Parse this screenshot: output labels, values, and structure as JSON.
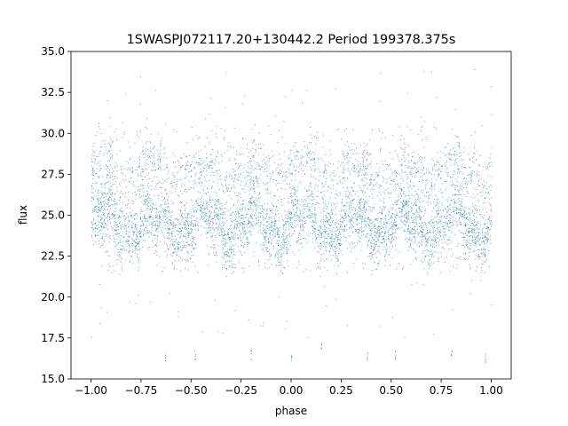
{
  "chart_data": {
    "type": "scatter",
    "title": "1SWASPJ072117.20+130442.2 Period 199378.375s",
    "xlabel": "phase",
    "ylabel": "flux",
    "xlim": [
      -1.1,
      1.1
    ],
    "ylim": [
      15.0,
      35.0
    ],
    "x_ticks": [
      -1.0,
      -0.75,
      -0.5,
      -0.25,
      0.0,
      0.25,
      0.5,
      0.75,
      1.0
    ],
    "x_tick_labels": [
      "−1.00",
      "−0.75",
      "−0.50",
      "−0.25",
      "0.00",
      "0.25",
      "0.50",
      "0.75",
      "1.00"
    ],
    "y_ticks": [
      15.0,
      17.5,
      20.0,
      22.5,
      25.0,
      27.5,
      30.0,
      32.5,
      35.0
    ],
    "y_tick_labels": [
      "15.0",
      "17.5",
      "20.0",
      "22.5",
      "25.0",
      "27.5",
      "30.0",
      "32.5",
      "35.0"
    ],
    "grid": false,
    "marker_color": "#1f77b4",
    "series": [
      {
        "description": "phase-folded flux, repeated over two cycles (phase -1 to 1)",
        "dense_bands": [
          {
            "flux_low": 22.5,
            "flux_high": 26.5
          },
          {
            "flux_low": 26.5,
            "flux_high": 29.0
          }
        ],
        "sample_points": [
          [
            -0.98,
            24.2
          ],
          [
            -0.95,
            25.8
          ],
          [
            -0.92,
            28.0
          ],
          [
            -0.88,
            24.6
          ],
          [
            -0.83,
            26.4
          ],
          [
            -0.78,
            25.1
          ],
          [
            -0.72,
            24.0
          ],
          [
            -0.66,
            22.5
          ],
          [
            -0.6,
            27.0
          ],
          [
            -0.55,
            28.5
          ],
          [
            -0.5,
            25.0
          ],
          [
            -0.45,
            27.7
          ],
          [
            -0.4,
            25.2
          ],
          [
            -0.35,
            24.3
          ],
          [
            -0.3,
            26.7
          ],
          [
            -0.25,
            24.8
          ],
          [
            -0.2,
            23.8
          ],
          [
            -0.15,
            28.0
          ],
          [
            -0.1,
            24.5
          ],
          [
            -0.05,
            26.0
          ],
          [
            0.0,
            24.3
          ],
          [
            0.05,
            28.2
          ],
          [
            0.1,
            25.0
          ],
          [
            0.15,
            23.9
          ],
          [
            0.2,
            26.4
          ],
          [
            0.25,
            25.3
          ],
          [
            0.3,
            23.0
          ],
          [
            0.35,
            24.6
          ],
          [
            0.4,
            27.2
          ],
          [
            0.45,
            28.3
          ],
          [
            0.5,
            25.0
          ],
          [
            0.55,
            27.8
          ],
          [
            0.6,
            25.3
          ],
          [
            0.65,
            24.4
          ],
          [
            0.7,
            26.6
          ],
          [
            0.75,
            25.0
          ],
          [
            0.8,
            24.0
          ],
          [
            0.85,
            28.0
          ],
          [
            0.9,
            24.2
          ],
          [
            0.95,
            26.2
          ],
          [
            1.0,
            24.5
          ]
        ],
        "low_outliers": [
          [
            -0.63,
            16.4
          ],
          [
            -0.48,
            16.5
          ],
          [
            -0.2,
            16.5
          ],
          [
            0.0,
            16.3
          ],
          [
            0.15,
            17.0
          ],
          [
            0.38,
            16.4
          ],
          [
            0.52,
            16.5
          ],
          [
            0.8,
            16.5
          ],
          [
            0.97,
            16.3
          ]
        ]
      }
    ]
  }
}
